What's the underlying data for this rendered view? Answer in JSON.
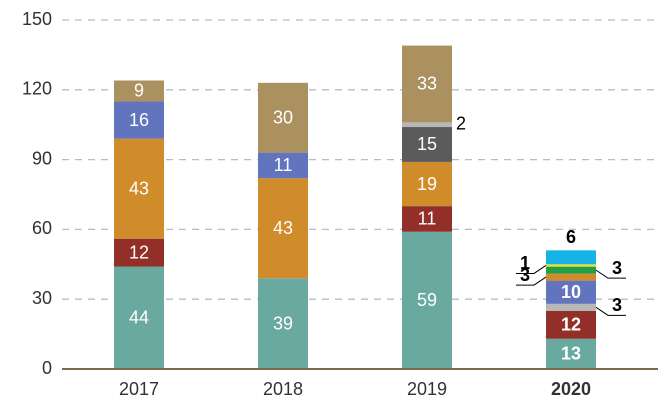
{
  "chart_data": {
    "type": "stacked_bar",
    "categories": [
      "2017",
      "2018",
      "2019",
      "2020"
    ],
    "series": [
      {
        "color": "#6aa9a0",
        "values": [
          44,
          39,
          59,
          13
        ]
      },
      {
        "color": "#922f29",
        "values": [
          12,
          null,
          11,
          12
        ]
      },
      {
        "color": "#d08b2a",
        "values": [
          43,
          43,
          19,
          null
        ]
      },
      {
        "color": "#5b5b5b",
        "values": [
          null,
          null,
          15,
          null
        ]
      },
      {
        "color": "#b7b7b7",
        "values": [
          null,
          null,
          2,
          3
        ]
      },
      {
        "color": "#6274be",
        "values": [
          16,
          11,
          null,
          10
        ]
      },
      {
        "color": "#d08b2a",
        "values": [
          null,
          null,
          null,
          3
        ]
      },
      {
        "color": "#ab9160",
        "values": [
          9,
          30,
          33,
          null
        ]
      },
      {
        "color": "#22a047",
        "values": [
          null,
          null,
          null,
          3
        ]
      },
      {
        "color": "#f2df2a",
        "values": [
          null,
          null,
          null,
          1
        ]
      },
      {
        "color": "#16b4e6",
        "values": [
          null,
          null,
          null,
          6
        ]
      }
    ],
    "ylim": [
      0,
      150
    ],
    "yticks": [
      0,
      30,
      60,
      90,
      120,
      150
    ],
    "grid": true
  }
}
